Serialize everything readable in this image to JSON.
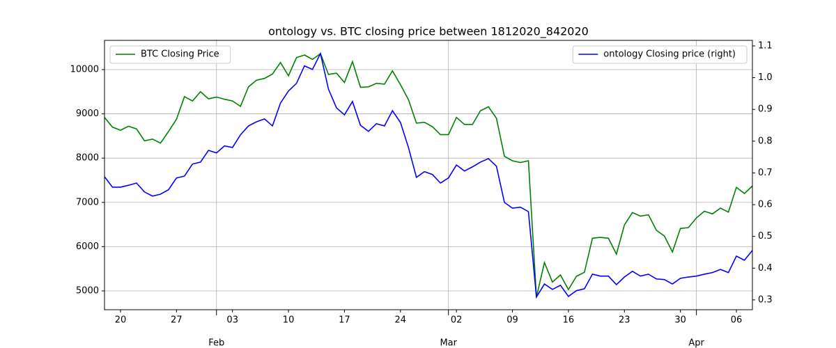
{
  "chart_data": {
    "type": "line",
    "title": "ontology vs. BTC closing price between 1812020_842020",
    "x": [
      "01-18",
      "01-19",
      "01-20",
      "01-21",
      "01-22",
      "01-23",
      "01-24",
      "01-25",
      "01-26",
      "01-27",
      "01-28",
      "01-29",
      "01-30",
      "01-31",
      "02-01",
      "02-02",
      "02-03",
      "02-04",
      "02-05",
      "02-06",
      "02-07",
      "02-08",
      "02-09",
      "02-10",
      "02-11",
      "02-12",
      "02-13",
      "02-14",
      "02-15",
      "02-16",
      "02-17",
      "02-18",
      "02-19",
      "02-20",
      "02-21",
      "02-22",
      "02-23",
      "02-24",
      "02-25",
      "02-26",
      "02-27",
      "02-28",
      "02-29",
      "03-01",
      "03-02",
      "03-03",
      "03-04",
      "03-05",
      "03-06",
      "03-07",
      "03-08",
      "03-09",
      "03-10",
      "03-11",
      "03-12",
      "03-13",
      "03-14",
      "03-15",
      "03-16",
      "03-17",
      "03-18",
      "03-19",
      "03-20",
      "03-21",
      "03-22",
      "03-23",
      "03-24",
      "03-25",
      "03-26",
      "03-27",
      "03-28",
      "03-29",
      "03-30",
      "03-31",
      "04-01",
      "04-02",
      "04-03",
      "04-04",
      "04-05",
      "04-06",
      "04-07",
      "04-08"
    ],
    "series": [
      {
        "name": "BTC Closing Price",
        "color": "#008000",
        "legend": "upper left",
        "values": [
          8920,
          8700,
          8630,
          8720,
          8660,
          8390,
          8430,
          8340,
          8600,
          8880,
          9390,
          9290,
          9500,
          9340,
          9380,
          9330,
          9290,
          9170,
          9610,
          9760,
          9800,
          9900,
          10160,
          9860,
          10270,
          10330,
          10230,
          10360,
          9890,
          9920,
          9710,
          10180,
          9600,
          9610,
          9690,
          9670,
          9970,
          9660,
          9320,
          8790,
          8810,
          8710,
          8530,
          8530,
          8920,
          8760,
          8760,
          9070,
          9160,
          8900,
          8040,
          7940,
          7900,
          7940,
          4860,
          5640,
          5200,
          5360,
          5030,
          5330,
          5420,
          6190,
          6210,
          6190,
          5830,
          6490,
          6770,
          6690,
          6720,
          6370,
          6240,
          5880,
          6410,
          6430,
          6650,
          6800,
          6740,
          6870,
          6780,
          7340,
          7200,
          7370
        ]
      },
      {
        "name": "ontology Closing price (right)",
        "color": "#0000ff",
        "axis": "y2",
        "legend": "upper right",
        "values": [
          0.688,
          0.655,
          0.655,
          0.661,
          0.668,
          0.64,
          0.627,
          0.633,
          0.647,
          0.684,
          0.69,
          0.728,
          0.734,
          0.771,
          0.763,
          0.785,
          0.78,
          0.82,
          0.848,
          0.861,
          0.87,
          0.848,
          0.92,
          0.958,
          0.982,
          1.037,
          1.026,
          1.076,
          0.964,
          0.905,
          0.883,
          0.925,
          0.85,
          0.831,
          0.855,
          0.848,
          0.896,
          0.859,
          0.78,
          0.686,
          0.704,
          0.695,
          0.668,
          0.684,
          0.725,
          0.706,
          0.719,
          0.734,
          0.745,
          0.721,
          0.607,
          0.589,
          0.592,
          0.578,
          0.309,
          0.35,
          0.333,
          0.346,
          0.311,
          0.329,
          0.335,
          0.381,
          0.375,
          0.375,
          0.348,
          0.372,
          0.39,
          0.375,
          0.381,
          0.366,
          0.364,
          0.35,
          0.368,
          0.372,
          0.375,
          0.381,
          0.386,
          0.396,
          0.386,
          0.438,
          0.425,
          0.456
        ]
      }
    ],
    "xlim": [
      "01-18",
      "04-08"
    ],
    "xticks": [
      {
        "value": "01-20",
        "label": "20"
      },
      {
        "value": "01-27",
        "label": "27"
      },
      {
        "value": "02-03",
        "label": "03"
      },
      {
        "value": "02-10",
        "label": "10"
      },
      {
        "value": "02-17",
        "label": "17"
      },
      {
        "value": "02-24",
        "label": "24"
      },
      {
        "value": "03-02",
        "label": "02"
      },
      {
        "value": "03-09",
        "label": "09"
      },
      {
        "value": "03-16",
        "label": "16"
      },
      {
        "value": "03-23",
        "label": "23"
      },
      {
        "value": "03-30",
        "label": "30"
      },
      {
        "value": "04-06",
        "label": "06"
      }
    ],
    "month_ticks": [
      {
        "value": "02-01",
        "label": "Feb"
      },
      {
        "value": "03-01",
        "label": "Mar"
      },
      {
        "value": "04-01",
        "label": "Apr"
      }
    ],
    "ylim": [
      4575,
      10660
    ],
    "yticks": [
      5000,
      6000,
      7000,
      8000,
      9000,
      10000
    ],
    "y2lim": [
      0.269,
      1.1175
    ],
    "y2ticks": [
      0.3,
      0.4,
      0.5,
      0.6,
      0.7,
      0.8,
      0.9,
      {
        "value": 1,
        "label": "1.0"
      },
      1.1
    ],
    "grid": true
  }
}
